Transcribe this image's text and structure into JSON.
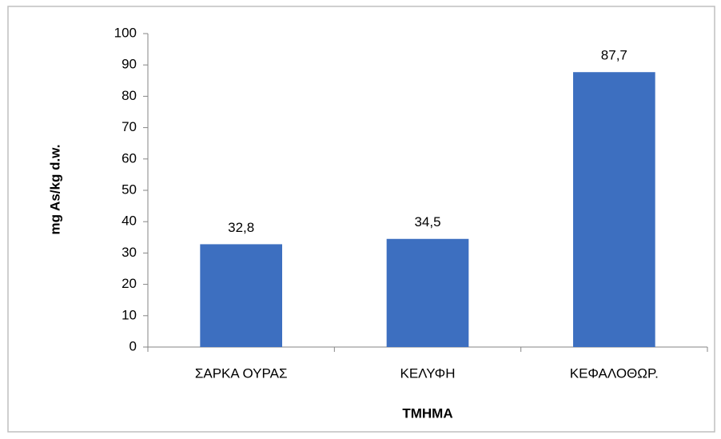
{
  "chart_data": {
    "type": "bar",
    "xlabel": "ΤΜΗΜΑ",
    "ylabel": "mg As/kg d.w.",
    "categories": [
      "ΣΑΡΚΑ ΟΥΡΑΣ",
      "ΚΕΛΥΦΗ",
      "ΚΕΦΑΛΟΘΩΡ."
    ],
    "values": [
      32.8,
      34.5,
      87.7
    ],
    "value_labels": [
      "32,8",
      "34,5",
      "87,7"
    ],
    "color": "#3d6fc0",
    "ylim": [
      0,
      100
    ],
    "yticks": [
      0,
      10,
      20,
      30,
      40,
      50,
      60,
      70,
      80,
      90,
      100
    ],
    "grid": false
  }
}
